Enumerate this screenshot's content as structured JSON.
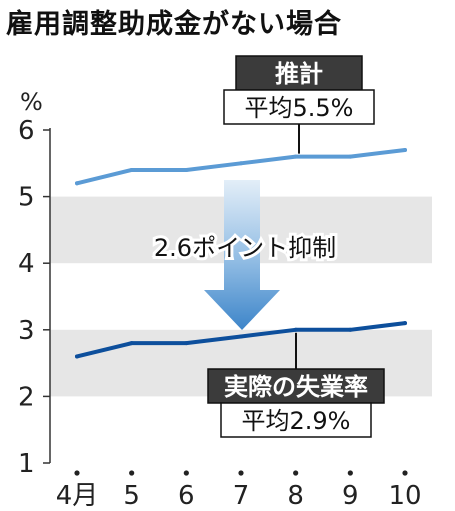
{
  "title": "雇用調整助成金がない場合",
  "chart_data": {
    "type": "line",
    "title": "雇用調整助成金がない場合",
    "y_unit": "%",
    "ylim": [
      1,
      6
    ],
    "y_ticks": [
      "1",
      "2",
      "3",
      "4",
      "5",
      "6"
    ],
    "categories": [
      "4月",
      "5",
      "6",
      "7",
      "8",
      "9",
      "10"
    ],
    "grid_bands": true,
    "series": [
      {
        "key": "estimate",
        "name": "推計",
        "average_label": "平均5.5%",
        "color": "#5b9bd5",
        "values": [
          5.2,
          5.4,
          5.4,
          5.5,
          5.6,
          5.6,
          5.7
        ]
      },
      {
        "key": "actual",
        "name": "実際の失業率",
        "average_label": "平均2.9%",
        "color": "#0d4f9c",
        "values": [
          2.6,
          2.8,
          2.8,
          2.9,
          3.0,
          3.0,
          3.1
        ]
      }
    ],
    "annotation": "2.6ポイント抑制"
  }
}
